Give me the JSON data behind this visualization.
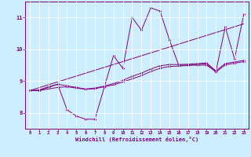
{
  "title": "",
  "xlabel": "Windchill (Refroidissement éolien,°C)",
  "background_color": "#cceeff",
  "line_color": "#800080",
  "grid_color": "#ffffff",
  "xlim": [
    -0.5,
    23.5
  ],
  "ylim": [
    7.5,
    11.5
  ],
  "yticks": [
    8,
    9,
    10,
    11
  ],
  "xticks": [
    0,
    1,
    2,
    3,
    4,
    5,
    6,
    7,
    8,
    9,
    10,
    11,
    12,
    13,
    14,
    15,
    16,
    17,
    18,
    19,
    20,
    21,
    22,
    23
  ],
  "series1_x": [
    0,
    1,
    2,
    3,
    4,
    5,
    6,
    7,
    8,
    9,
    10,
    11,
    12,
    13,
    14,
    15,
    16,
    17,
    18,
    19,
    20,
    21,
    22,
    23
  ],
  "series1_y": [
    8.7,
    8.7,
    8.8,
    8.9,
    8.1,
    7.9,
    7.8,
    7.8,
    8.8,
    9.8,
    9.4,
    11.0,
    10.6,
    11.3,
    11.2,
    10.3,
    9.5,
    9.5,
    9.5,
    9.5,
    9.3,
    10.7,
    9.7,
    11.1
  ],
  "series2_x": [
    0,
    1,
    2,
    3,
    4,
    5,
    6,
    7,
    8,
    9,
    10,
    11,
    12,
    13,
    14,
    15,
    16,
    17,
    18,
    19,
    20,
    21,
    22,
    23
  ],
  "series2_y": [
    8.7,
    8.72,
    8.82,
    8.9,
    8.85,
    8.8,
    8.75,
    8.78,
    8.84,
    8.92,
    9.02,
    9.15,
    9.25,
    9.38,
    9.48,
    9.52,
    9.52,
    9.53,
    9.55,
    9.57,
    9.32,
    9.55,
    9.6,
    9.65
  ],
  "series3_x": [
    0,
    23
  ],
  "series3_y": [
    8.7,
    10.8
  ],
  "series4_x": [
    0,
    1,
    2,
    3,
    4,
    5,
    6,
    7,
    8,
    9,
    10,
    11,
    12,
    13,
    14,
    15,
    16,
    17,
    18,
    19,
    20,
    21,
    22,
    23
  ],
  "series4_y": [
    8.7,
    8.7,
    8.75,
    8.8,
    8.82,
    8.78,
    8.74,
    8.76,
    8.82,
    8.88,
    8.97,
    9.07,
    9.17,
    9.3,
    9.4,
    9.46,
    9.47,
    9.49,
    9.52,
    9.54,
    9.28,
    9.51,
    9.56,
    9.61
  ]
}
